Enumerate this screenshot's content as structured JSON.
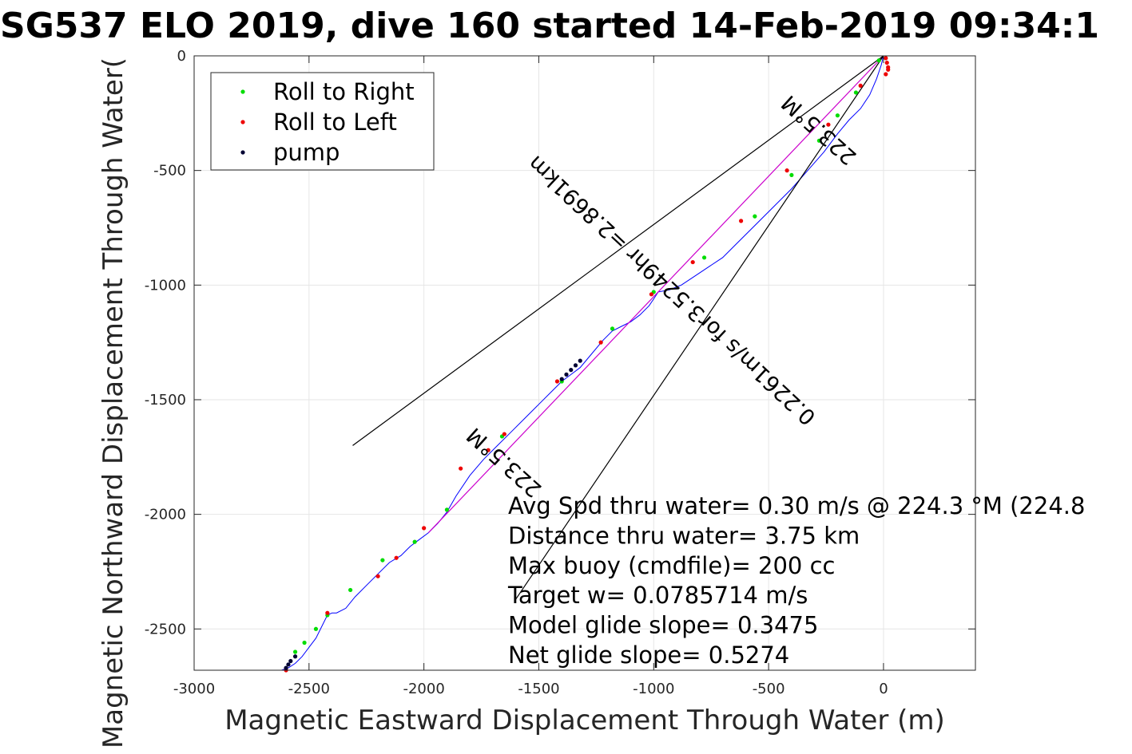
{
  "chart_data": {
    "type": "line",
    "title": "SG537 ELO 2019, dive 160 started 14-Feb-2019 09:34:1",
    "xlabel": "Magnetic Eastward Displacement Through Water (m)",
    "ylabel": "Magnetic Northward Displacement Through Water(",
    "xlim": [
      -3000,
      400
    ],
    "ylim": [
      -2680,
      0
    ],
    "x_ticks": [
      -3000,
      -2500,
      -2000,
      -1500,
      -1000,
      -500,
      0
    ],
    "y_ticks": [
      0,
      -500,
      -1000,
      -1500,
      -2000,
      -2500
    ],
    "x_tick_labels": [
      "-3000",
      "-2500",
      "-2000",
      "-1500",
      "-1000",
      "-500",
      "0"
    ],
    "y_tick_labels": [
      "0",
      "-500",
      "-1000",
      "-1500",
      "-2000",
      "-2500"
    ],
    "grid": true,
    "legend": {
      "position": "top-left",
      "entries": [
        {
          "label": "Roll to Right",
          "color": "#00dd00"
        },
        {
          "label": "Roll to Left",
          "color": "#ee0000"
        },
        {
          "label": "pump",
          "color": "#000033"
        }
      ]
    },
    "series": [
      {
        "color": "#0000ff",
        "x": [
          0,
          -10,
          -30,
          -60,
          -100,
          -150,
          -200,
          -260,
          -330,
          -400,
          -480,
          -560,
          -640,
          -700,
          -760,
          -820,
          -880,
          -930,
          -980,
          -1000,
          -1020,
          -1060,
          -1100,
          -1140,
          -1180,
          -1220,
          -1270,
          -1320,
          -1360,
          -1400,
          -1440,
          -1500,
          -1560,
          -1620,
          -1680,
          -1740,
          -1800,
          -1860,
          -1900,
          -1940,
          -1980,
          -2020,
          -2060,
          -2100,
          -2150,
          -2200,
          -2250,
          -2300,
          -2340,
          -2380,
          -2400,
          -2420,
          -2440,
          -2470,
          -2500,
          -2530,
          -2560,
          -2590,
          -2620
        ],
        "y": [
          0,
          -40,
          -100,
          -170,
          -230,
          -280,
          -340,
          -420,
          -500,
          -580,
          -660,
          -740,
          -820,
          -880,
          -920,
          -960,
          -1000,
          -1020,
          -1030,
          -1060,
          -1090,
          -1130,
          -1160,
          -1180,
          -1200,
          -1240,
          -1300,
          -1360,
          -1390,
          -1420,
          -1460,
          -1520,
          -1580,
          -1640,
          -1700,
          -1760,
          -1830,
          -1920,
          -1990,
          -2040,
          -2080,
          -2110,
          -2140,
          -2180,
          -2210,
          -2260,
          -2310,
          -2360,
          -2410,
          -2430,
          -2430,
          -2440,
          -2480,
          -2540,
          -2580,
          -2620,
          -2650,
          -2670,
          -2680
        ]
      },
      {
        "color": "#cc00cc",
        "x": [
          -1980,
          0
        ],
        "y": [
          -2080,
          0
        ]
      },
      {
        "color": "#000000",
        "x": [
          -2310,
          0
        ],
        "y": [
          -1700,
          0
        ]
      },
      {
        "color": "#000000",
        "x": [
          -1600,
          0
        ],
        "y": [
          -2370,
          0
        ]
      }
    ],
    "roll_right_points": {
      "x": [
        -20,
        -120,
        -200,
        -280,
        -400,
        -560,
        -780,
        -1000,
        -1180,
        -1400,
        -1660,
        -1900,
        -2040,
        -2180,
        -2320,
        -2420,
        -2470,
        -2520,
        -2560
      ],
      "y": [
        -20,
        -160,
        -260,
        -370,
        -520,
        -700,
        -880,
        -1030,
        -1190,
        -1420,
        -1660,
        -1980,
        -2120,
        -2200,
        -2330,
        -2440,
        -2500,
        -2560,
        -2600
      ]
    },
    "roll_left_points": {
      "x": [
        10,
        15,
        20,
        20,
        10,
        -100,
        -240,
        -420,
        -620,
        -830,
        -1010,
        -1230,
        -1420,
        -1650,
        -1720,
        -1840,
        -2000,
        -2120,
        -2200,
        -2420,
        -2600
      ],
      "y": [
        -10,
        -30,
        -50,
        -60,
        -80,
        -130,
        -300,
        -500,
        -720,
        -900,
        -1040,
        -1250,
        -1420,
        -1650,
        -1720,
        -1800,
        -2060,
        -2190,
        -2270,
        -2430,
        -2680
      ]
    },
    "pump_points": {
      "x": [
        -1320,
        -1340,
        -1360,
        -1380,
        -1400,
        -2560,
        -2580,
        -2590,
        -2600
      ],
      "y": [
        -1330,
        -1350,
        -1370,
        -1390,
        -1410,
        -2620,
        -2640,
        -2655,
        -2670
      ]
    },
    "line_labels": [
      {
        "text": "223.5°M",
        "x": -1630,
        "y": -1750,
        "angle": 222
      },
      {
        "text": "0.2261m/s for3.5249hr =2.8691km",
        "x": -900,
        "y": -1000,
        "angle": 223
      },
      {
        "text": "223.5°M",
        "x": -260,
        "y": -300,
        "angle": 222
      }
    ],
    "annotations": [
      "Avg Spd thru water=  0.30 m/s @ 224.3 °M (224.8",
      "Distance thru water=  3.75 km",
      "Max buoy (cmdfile)= 200 cc",
      "Target w= 0.0785714 m/s",
      "Model glide slope= 0.3475",
      "Net glide slope= 0.5274"
    ]
  }
}
